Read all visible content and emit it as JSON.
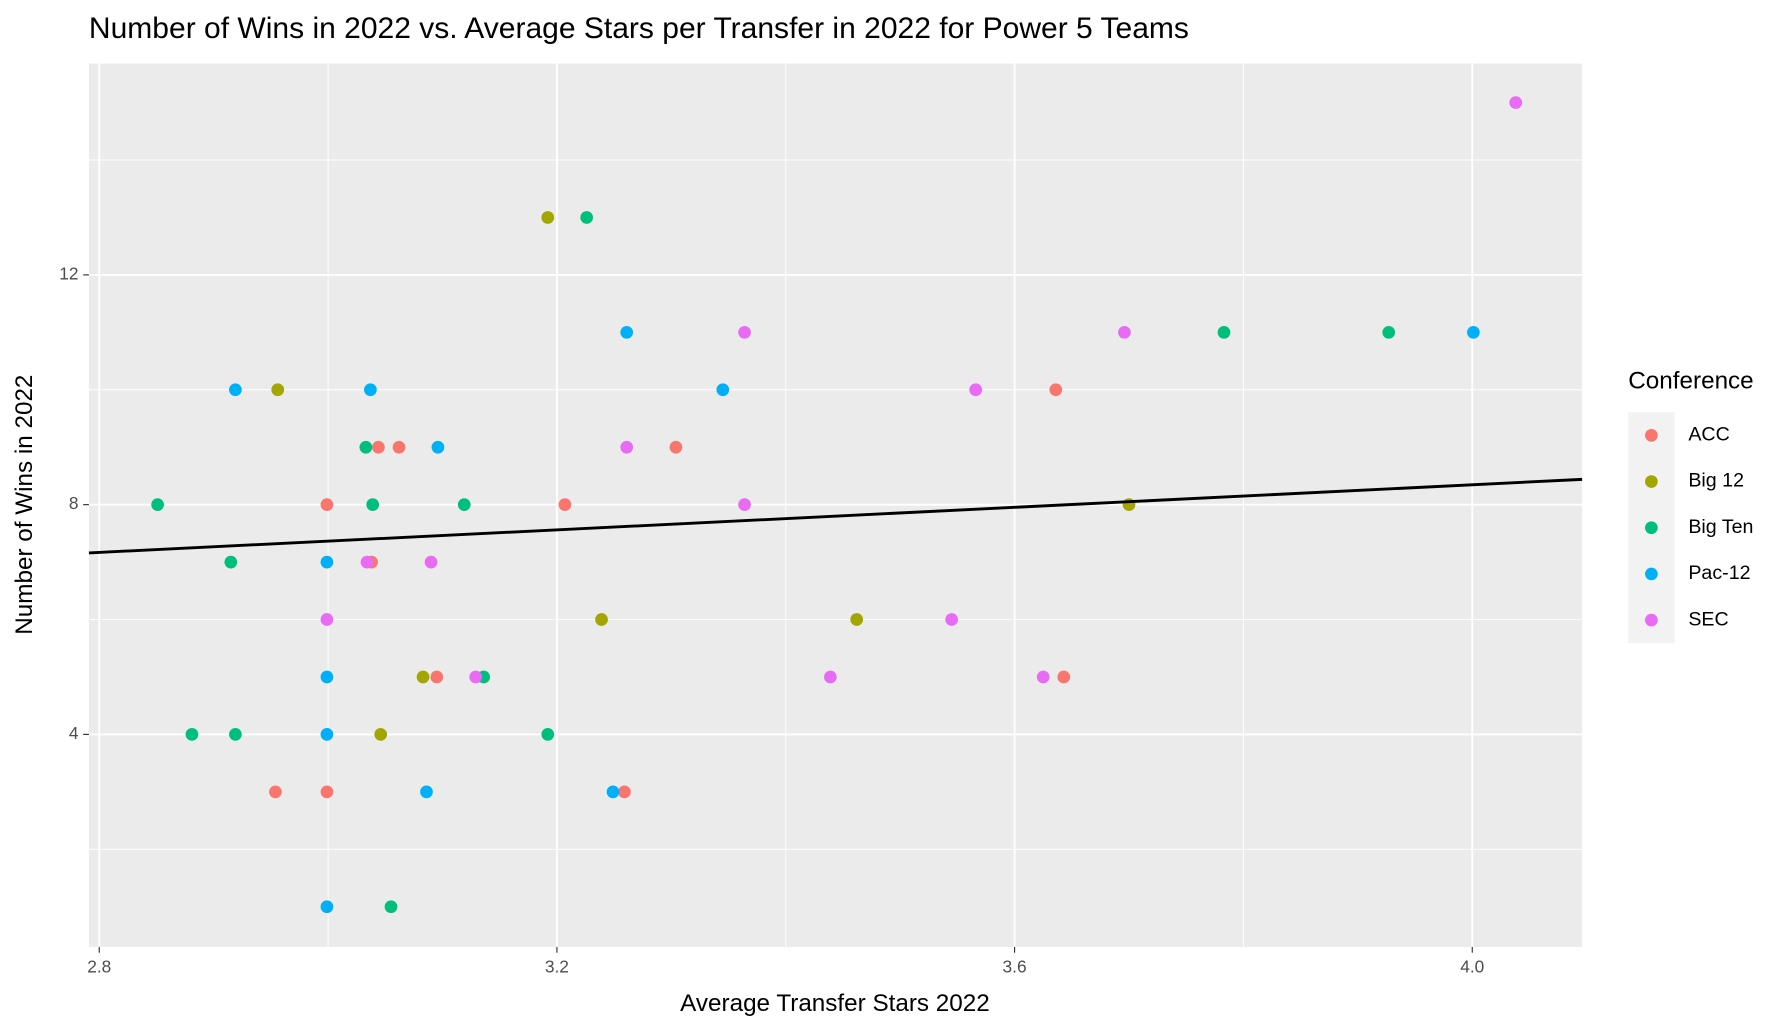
{
  "chart_data": {
    "type": "scatter",
    "title": "Number of Wins in 2022 vs. Average Stars per Transfer in 2022 for Power 5 Teams",
    "x_label": "Average Transfer Stars 2022",
    "y_label": "Number of Wins in 2022",
    "legend_title": "Conference",
    "legend_position": "right",
    "grid": true,
    "xlim": [
      2.791,
      4.096
    ],
    "ylim": [
      0.3,
      15.68
    ],
    "xticks": [
      2.8,
      3.2,
      3.6,
      {
        "value": 4,
        "label": "4.0"
      }
    ],
    "yticks": [
      4,
      8,
      12
    ],
    "xminor": [
      3.0,
      3.4,
      3.8
    ],
    "yminor": [
      2,
      6,
      10,
      14
    ],
    "fit_line": {
      "color": "#000000",
      "x": [
        2.791,
        4.096
      ],
      "y": [
        7.16,
        8.44
      ]
    },
    "series": [
      {
        "name": "ACC",
        "color": "#F8766D",
        "x": [
          2.999,
          2.999,
          2.954,
          3.044,
          3.062,
          3.038,
          3.095,
          3.207,
          3.259,
          3.304,
          3.636,
          3.643
        ],
        "values": [
          8,
          3,
          3,
          9,
          9,
          7,
          5,
          8,
          3,
          9,
          10,
          5
        ]
      },
      {
        "name": "Big 12",
        "color": "#A3A500",
        "x": [
          2.956,
          3.192,
          3.083,
          3.046,
          3.239,
          3.462,
          3.7
        ],
        "values": [
          10,
          13,
          5,
          4,
          6,
          6,
          8
        ]
      },
      {
        "name": "Big Ten",
        "color": "#00BF7D",
        "x": [
          2.851,
          2.915,
          2.881,
          2.919,
          3.033,
          3.039,
          3.119,
          3.136,
          3.192,
          3.055,
          3.226,
          3.783,
          3.927
        ],
        "values": [
          8,
          7,
          4,
          4,
          9,
          8,
          8,
          5,
          4,
          1,
          13,
          11,
          11
        ]
      },
      {
        "name": "Pac-12",
        "color": "#00B0F6",
        "x": [
          2.919,
          3.037,
          3.096,
          2.999,
          2.999,
          2.999,
          2.999,
          3.086,
          3.249,
          3.261,
          3.345,
          4.001
        ],
        "values": [
          10,
          10,
          9,
          7,
          5,
          4,
          1,
          3,
          3,
          11,
          10,
          11
        ]
      },
      {
        "name": "SEC",
        "color": "#E76BF3",
        "x": [
          3.034,
          3.09,
          2.999,
          3.129,
          3.261,
          3.364,
          3.364,
          3.439,
          3.545,
          3.566,
          3.625,
          3.696,
          4.038
        ],
        "values": [
          7,
          7,
          6,
          5,
          9,
          11,
          8,
          5,
          6,
          10,
          5,
          11,
          15
        ]
      }
    ]
  }
}
